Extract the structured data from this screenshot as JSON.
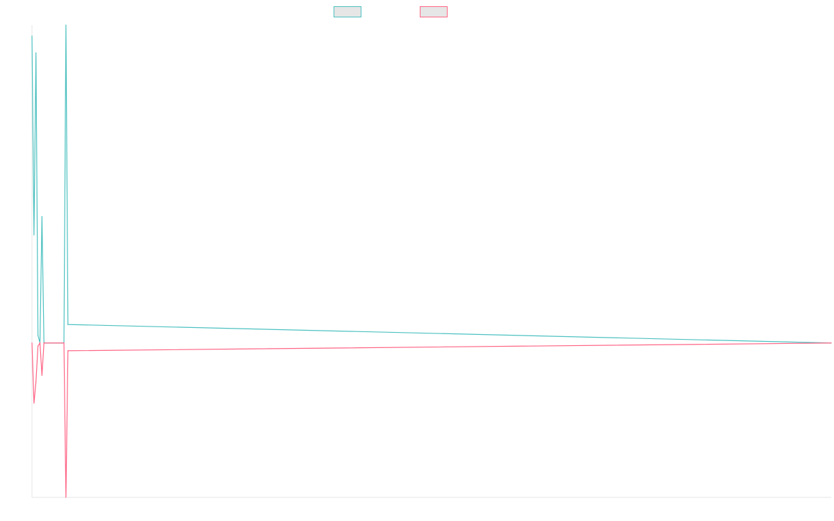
{
  "chart_data": {
    "type": "line",
    "title": "",
    "xlabel": "",
    "ylabel": "",
    "grid": false,
    "legend_position": "top",
    "ylim": [
      -100,
      206
    ],
    "xlim": [
      0,
      400
    ],
    "x": [
      0,
      1,
      2,
      3,
      4,
      5,
      6,
      16,
      17,
      18,
      400
    ],
    "series": [
      {
        "name": "",
        "color": "#4bc0c0",
        "values": [
          199,
          70,
          188,
          5,
          0,
          82,
          0,
          0,
          206,
          12,
          0
        ]
      },
      {
        "name": "",
        "color": "#ff6384",
        "values": [
          0,
          -39,
          -25,
          -2,
          0,
          -21,
          0,
          0,
          -100,
          -5,
          0
        ]
      }
    ]
  }
}
